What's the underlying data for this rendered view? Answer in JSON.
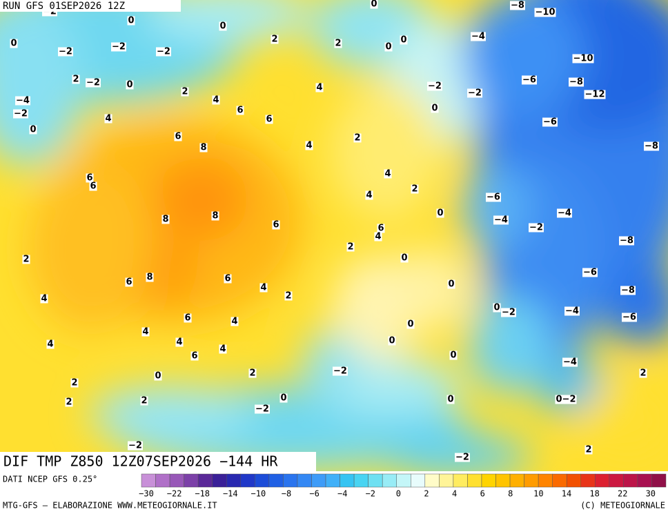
{
  "header": {
    "run": "RUN GFS 01SEP2026 12Z"
  },
  "map": {
    "title": "DIF TMP Z850 12Z07SEP2026 −144 HR",
    "contour_labels": [
      "−2",
      "0",
      "0",
      "2",
      "0",
      "2",
      "0",
      "0",
      "−8",
      "−10",
      "−4",
      "0",
      "−2",
      "−2",
      "−2",
      "−10",
      "2",
      "−2",
      "0",
      "2",
      "4",
      "−2",
      "−2",
      "−6",
      "−8",
      "−12",
      "−4",
      "−2",
      "4",
      "6",
      "0",
      "4",
      "6",
      "0",
      "−6",
      "6",
      "2",
      "4",
      "8",
      "−8",
      "6",
      "6",
      "4",
      "2",
      "4",
      "−6",
      "8",
      "−4",
      "8",
      "6",
      "−4",
      "−2",
      "6",
      "4",
      "0",
      "2",
      "−8",
      "2",
      "0",
      "8",
      "6",
      "6",
      "−6",
      "4",
      "0",
      "2",
      "−8",
      "4",
      "0",
      "−2",
      "−4",
      "−6",
      "6",
      "4",
      "0",
      "4",
      "4",
      "4",
      "0",
      "4",
      "6",
      "0",
      "−4",
      "−2",
      "2",
      "0",
      "2",
      "2",
      "0",
      "2",
      "0",
      "2",
      "0−2",
      "−2",
      "−2",
      "−2",
      "2"
    ]
  },
  "legend": {
    "source": "DATI NCEP GFS 0.25°",
    "colors": [
      "#c890d8",
      "#b070c8",
      "#9858b8",
      "#7c40a8",
      "#5a2898",
      "#3a2098",
      "#2828b0",
      "#2038c8",
      "#1c4cd8",
      "#2060e4",
      "#2a74ee",
      "#3488f4",
      "#3e9cf8",
      "#40b0f8",
      "#36c4f2",
      "#48d4f2",
      "#6ee0f2",
      "#98ecf6",
      "#c4f6f8",
      "#e8fcfc",
      "#fffcc8",
      "#fff498",
      "#ffec60",
      "#ffe030",
      "#ffd400",
      "#ffc400",
      "#ffb000",
      "#ff9c00",
      "#ff8400",
      "#fa6a00",
      "#f25000",
      "#e83418",
      "#dc2030",
      "#cc1840",
      "#bc1448",
      "#a81050",
      "#901048"
    ],
    "ticks": [
      "−30",
      "−22",
      "−18",
      "−14",
      "−10",
      "−8",
      "−6",
      "−4",
      "−2",
      "0",
      "2",
      "4",
      "6",
      "8",
      "10",
      "14",
      "18",
      "22",
      "30"
    ]
  },
  "footer": {
    "left": "MTG-GFS — ELABORAZIONE WWW.METEOGIORNALE.IT",
    "right": "(C) METEOGIORNALE"
  }
}
